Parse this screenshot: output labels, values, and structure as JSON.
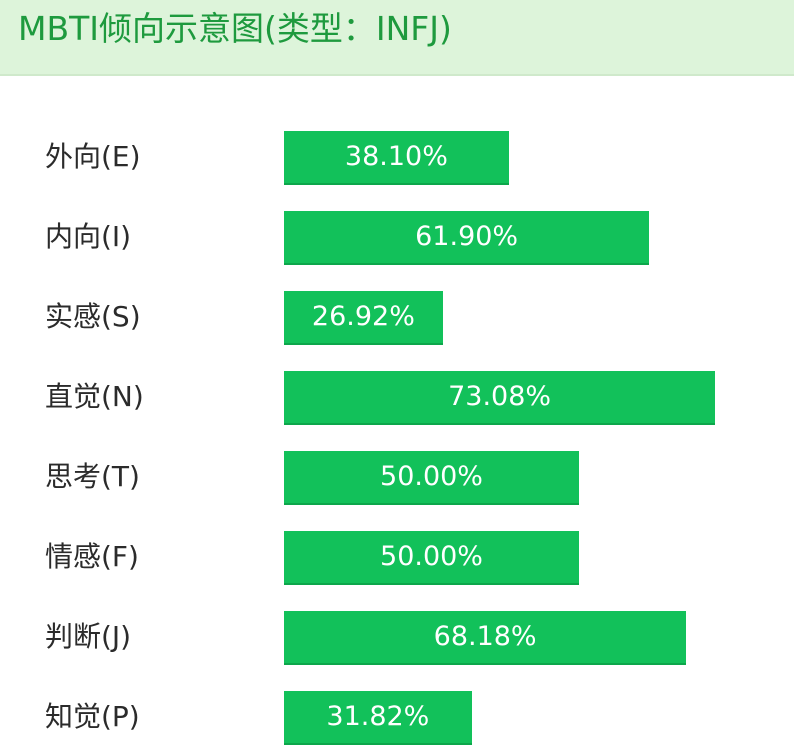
{
  "header": {
    "title": "MBTI倾向示意图(类型：INFJ)"
  },
  "colors": {
    "header_bg": "#ddf4da",
    "title_text": "#1e9a3e",
    "bar": "#12c15a",
    "bar_text": "#ffffff",
    "label_text": "#2b2b2b"
  },
  "chart_data": {
    "type": "bar",
    "orientation": "horizontal",
    "title": "MBTI倾向示意图(类型：INFJ)",
    "categories": [
      "外向(E)",
      "内向(I)",
      "实感(S)",
      "直觉(N)",
      "思考(T)",
      "情感(F)",
      "判断(J)",
      "知觉(P)"
    ],
    "values": [
      38.1,
      61.9,
      26.92,
      73.08,
      50.0,
      50.0,
      68.18,
      31.82
    ],
    "value_labels": [
      "38.10%",
      "61.90%",
      "26.92%",
      "73.08%",
      "50.00%",
      "50.00%",
      "68.18%",
      "31.82%"
    ],
    "unit": "%",
    "xlim": [
      0,
      100
    ],
    "grid": false,
    "legend": "none"
  }
}
